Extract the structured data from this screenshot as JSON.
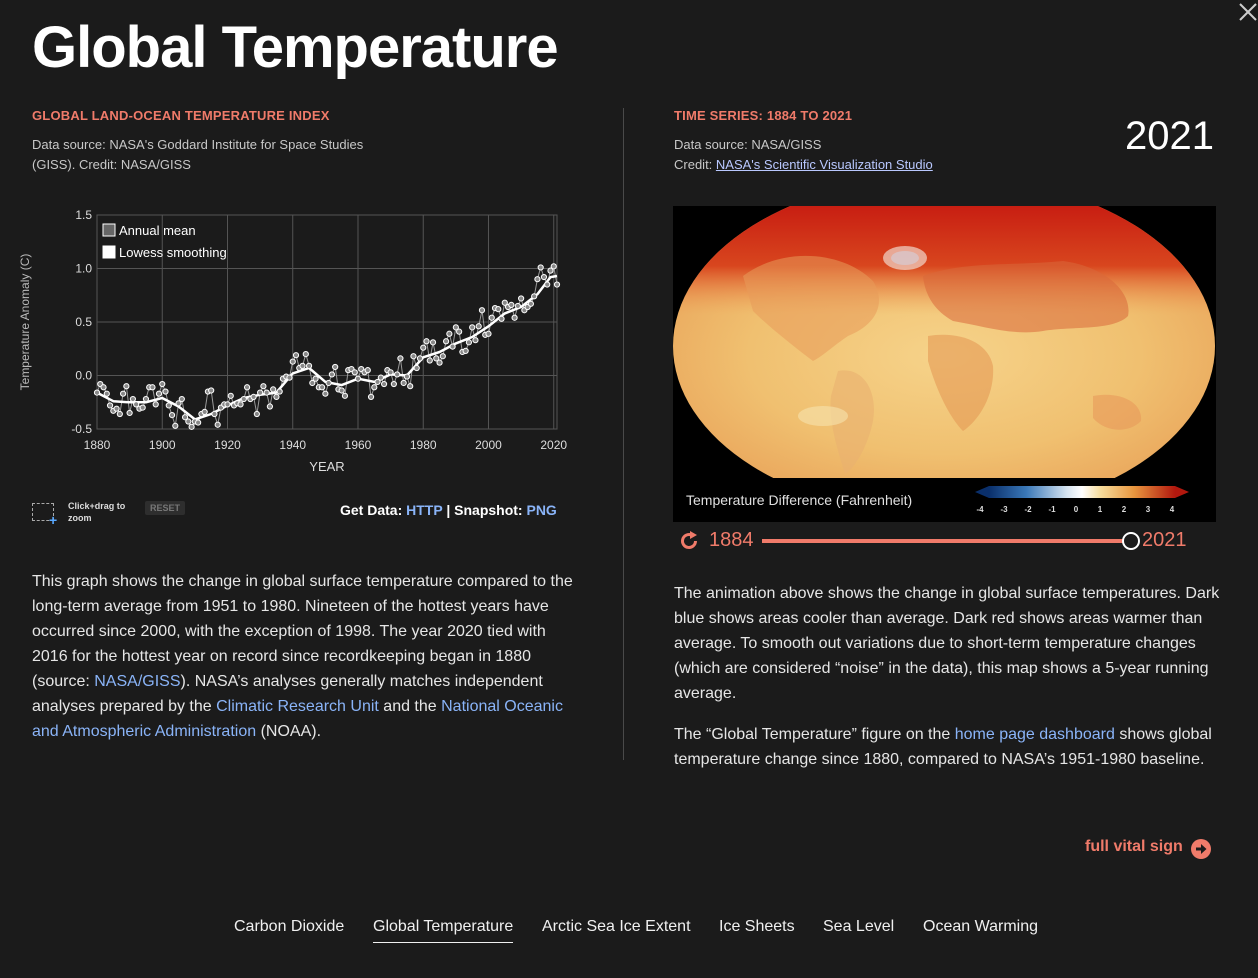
{
  "header": {
    "title": "Global Temperature"
  },
  "left": {
    "heading": "GLOBAL LAND-OCEAN TEMPERATURE INDEX",
    "source_line1": "Data source: NASA's Goddard Institute for Space Studies",
    "source_line2": "(GISS). Credit: NASA/GISS",
    "zoom_hint": "Click+drag to zoom",
    "reset_label": "RESET",
    "get_data_label": "Get Data:",
    "get_data_link": "HTTP",
    "separator": "|",
    "snapshot_label": "Snapshot:",
    "snapshot_link": "PNG",
    "description": {
      "p1": "This graph shows the change in global surface temperature compared to the long-term average from 1951 to 1980. Nineteen of the hottest years have occurred since 2000, with the exception of 1998. The year 2020 tied with 2016 for the hottest year on record since recordkeeping began in 1880 (source: ",
      "link1": "NASA/GISS",
      "p2": "). NASA’s analyses generally matches independent analyses prepared by the ",
      "link2": "Climatic Research Unit",
      "p3": " and the ",
      "link3": "National Oceanic and Atmospheric Administration",
      "p4": " (NOAA)."
    }
  },
  "right": {
    "heading": "TIME SERIES: 1884 TO 2021",
    "source_line1": "Data source: NASA/GISS",
    "credit_label": "Credit: ",
    "credit_link": "NASA's Scientific Visualization Studio",
    "current_year": "2021",
    "legend_title": "Temperature Difference (Fahrenheit)",
    "legend_ticks": [
      "-4",
      "-3",
      "-2",
      "-1",
      "0",
      "1",
      "2",
      "3",
      "4"
    ],
    "slider": {
      "start": "1884",
      "end": "2021",
      "position": 1.0
    },
    "para1": "The animation above shows the change in global surface temperatures. Dark blue shows areas cooler than average. Dark red shows areas warmer than average. To smooth out variations due to short-term temperature changes (which are considered “noise” in the data), this map shows a 5-year running average.",
    "para2_a": "The “Global Temperature” figure on the ",
    "para2_link": "home page dashboard",
    "para2_b": " shows global temperature change since 1880, compared to NASA’s 1951-1980 baseline.",
    "full_vital_sign": "full vital sign"
  },
  "nav": {
    "items": [
      "Carbon Dioxide",
      "Global Temperature",
      "Arctic Sea Ice Extent",
      "Ice Sheets",
      "Sea Level",
      "Ocean Warming"
    ],
    "active": 1
  },
  "colors": {
    "accent": "#f07b6a",
    "link": "#8ab4f8",
    "background": "#1b1b1b"
  },
  "icons": {
    "close": "close-icon",
    "replay": "replay-icon",
    "arrow": "arrow-right-circle-icon"
  },
  "chart_data": {
    "type": "line",
    "ylabel": "Temperature Anomaly (C)",
    "xlabel": "YEAR",
    "xlim": [
      1880,
      2021
    ],
    "ylim": [
      -0.5,
      1.5
    ],
    "xticks": [
      1880,
      1900,
      1920,
      1940,
      1960,
      1980,
      2000,
      2020
    ],
    "yticks": [
      -0.5,
      0.0,
      0.5,
      1.0,
      1.5
    ],
    "ytick_labels": [
      "-0.5",
      "0.0",
      "0.5",
      "1.0",
      "1.5"
    ],
    "grid": true,
    "legend_position": "top-left",
    "series": [
      {
        "name": "Annual mean",
        "style": "points",
        "x": [
          1880,
          1881,
          1882,
          1883,
          1884,
          1885,
          1886,
          1887,
          1888,
          1889,
          1890,
          1891,
          1892,
          1893,
          1894,
          1895,
          1896,
          1897,
          1898,
          1899,
          1900,
          1901,
          1902,
          1903,
          1904,
          1905,
          1906,
          1907,
          1908,
          1909,
          1910,
          1911,
          1912,
          1913,
          1914,
          1915,
          1916,
          1917,
          1918,
          1919,
          1920,
          1921,
          1922,
          1923,
          1924,
          1925,
          1926,
          1927,
          1928,
          1929,
          1930,
          1931,
          1932,
          1933,
          1934,
          1935,
          1936,
          1937,
          1938,
          1939,
          1940,
          1941,
          1942,
          1943,
          1944,
          1945,
          1946,
          1947,
          1948,
          1949,
          1950,
          1951,
          1952,
          1953,
          1954,
          1955,
          1956,
          1957,
          1958,
          1959,
          1960,
          1961,
          1962,
          1963,
          1964,
          1965,
          1966,
          1967,
          1968,
          1969,
          1970,
          1971,
          1972,
          1973,
          1974,
          1975,
          1976,
          1977,
          1978,
          1979,
          1980,
          1981,
          1982,
          1983,
          1984,
          1985,
          1986,
          1987,
          1988,
          1989,
          1990,
          1991,
          1992,
          1993,
          1994,
          1995,
          1996,
          1997,
          1998,
          1999,
          2000,
          2001,
          2002,
          2003,
          2004,
          2005,
          2006,
          2007,
          2008,
          2009,
          2010,
          2011,
          2012,
          2013,
          2014,
          2015,
          2016,
          2017,
          2018,
          2019,
          2020,
          2021
        ],
        "y": [
          -0.16,
          -0.08,
          -0.11,
          -0.17,
          -0.28,
          -0.33,
          -0.31,
          -0.36,
          -0.17,
          -0.1,
          -0.35,
          -0.22,
          -0.27,
          -0.31,
          -0.3,
          -0.22,
          -0.11,
          -0.11,
          -0.27,
          -0.17,
          -0.08,
          -0.15,
          -0.28,
          -0.37,
          -0.47,
          -0.26,
          -0.22,
          -0.39,
          -0.43,
          -0.48,
          -0.43,
          -0.44,
          -0.36,
          -0.34,
          -0.15,
          -0.14,
          -0.36,
          -0.46,
          -0.3,
          -0.27,
          -0.27,
          -0.19,
          -0.28,
          -0.26,
          -0.27,
          -0.22,
          -0.11,
          -0.22,
          -0.2,
          -0.36,
          -0.16,
          -0.1,
          -0.16,
          -0.29,
          -0.13,
          -0.2,
          -0.15,
          -0.03,
          -0.01,
          -0.02,
          0.13,
          0.19,
          0.07,
          0.09,
          0.2,
          0.09,
          -0.07,
          -0.03,
          -0.11,
          -0.11,
          -0.17,
          -0.07,
          0.01,
          0.08,
          -0.13,
          -0.14,
          -0.19,
          0.05,
          0.06,
          0.03,
          -0.03,
          0.06,
          0.03,
          0.05,
          -0.2,
          -0.11,
          -0.06,
          -0.02,
          -0.08,
          0.05,
          0.03,
          -0.08,
          0.01,
          0.16,
          -0.07,
          -0.01,
          -0.1,
          0.18,
          0.07,
          0.16,
          0.26,
          0.32,
          0.14,
          0.31,
          0.16,
          0.12,
          0.18,
          0.32,
          0.39,
          0.27,
          0.45,
          0.41,
          0.22,
          0.23,
          0.31,
          0.45,
          0.33,
          0.46,
          0.61,
          0.38,
          0.39,
          0.54,
          0.63,
          0.62,
          0.53,
          0.68,
          0.64,
          0.66,
          0.54,
          0.65,
          0.72,
          0.61,
          0.64,
          0.67,
          0.74,
          0.9,
          1.01,
          0.92,
          0.85,
          0.98,
          1.02,
          0.85
        ]
      },
      {
        "name": "Lowess smoothing",
        "style": "line",
        "x": [
          1880,
          1885,
          1890,
          1895,
          1900,
          1905,
          1910,
          1915,
          1920,
          1925,
          1930,
          1935,
          1940,
          1945,
          1950,
          1955,
          1960,
          1965,
          1970,
          1975,
          1980,
          1985,
          1990,
          1995,
          2000,
          2005,
          2010,
          2015,
          2019,
          2021
        ],
        "y": [
          -0.16,
          -0.24,
          -0.25,
          -0.25,
          -0.21,
          -0.29,
          -0.41,
          -0.36,
          -0.28,
          -0.21,
          -0.18,
          -0.16,
          0.02,
          0.07,
          -0.06,
          -0.09,
          -0.03,
          -0.06,
          0.01,
          0.0,
          0.17,
          0.22,
          0.3,
          0.36,
          0.46,
          0.58,
          0.64,
          0.76,
          0.92,
          0.93
        ]
      }
    ]
  }
}
